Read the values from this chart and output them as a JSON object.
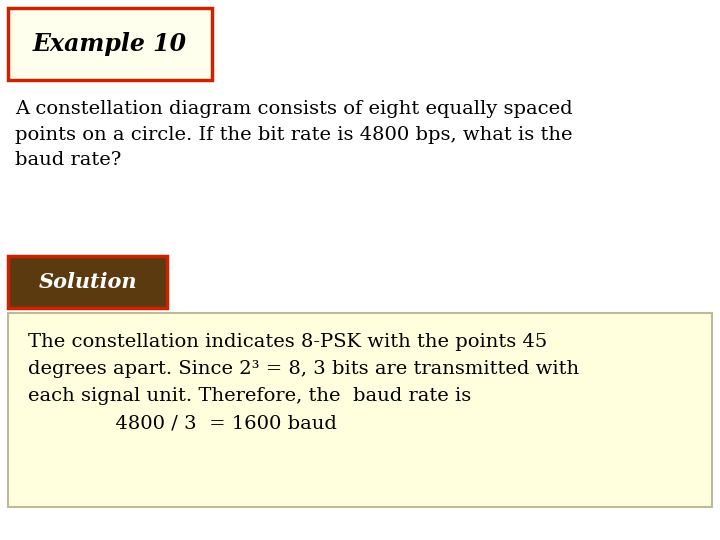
{
  "title": "Example 10",
  "title_box_facecolor": "#FFFFEE",
  "title_box_edgecolor": "#CC2200",
  "title_fontsize": 17,
  "title_fontstyle": "italic",
  "title_fontweight": "bold",
  "question_text": "A constellation diagram consists of eight equally spaced\npoints on a circle. If the bit rate is 4800 bps, what is the\nbaud rate?",
  "question_fontsize": 14,
  "solution_label": "Solution",
  "solution_box_facecolor": "#5C3A10",
  "solution_box_edgecolor": "#CC2200",
  "solution_fontsize": 15,
  "solution_fontstyle": "italic",
  "solution_fontweight": "bold",
  "solution_fontcolor": "#FFFFFF",
  "answer_box_facecolor": "#FFFFDD",
  "answer_box_edgecolor": "#BBBB99",
  "answer_line1": "The constellation indicates 8-PSK with the points 45",
  "answer_line2": "degrees apart. Since 2³ = 8, 3 bits are transmitted with",
  "answer_line3": "each signal unit. Therefore, the  baud rate is",
  "answer_line4": "              4800 / 3  = 1600 baud",
  "answer_fontsize": 14,
  "background_color": "#FFFFFF",
  "fig_width": 7.2,
  "fig_height": 5.4,
  "dpi": 100
}
